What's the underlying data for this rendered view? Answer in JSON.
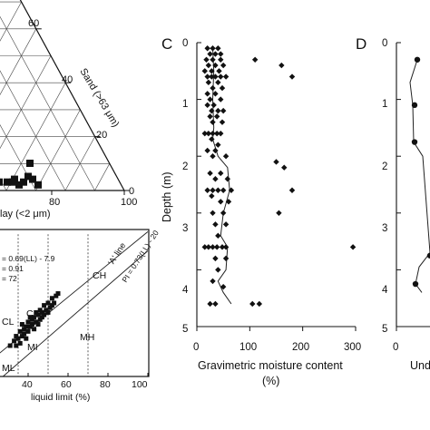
{
  "chart_data": [
    {
      "id": "ternary",
      "type": "scatter",
      "axis_labels": {
        "sand": "Sand (>63 μm)",
        "clay": "lay (<2 μm)"
      },
      "sand_ticks": [
        "60",
        "40",
        "20",
        "0"
      ],
      "bottom_ticks": [
        "80",
        "100"
      ],
      "points_sand_pct": [
        3,
        3,
        4,
        2,
        3,
        5,
        4,
        2,
        3
      ]
    },
    {
      "id": "plasticity",
      "type": "scatter",
      "xlabel": "liquid limit (%)",
      "xlim": [
        25,
        100
      ],
      "ylim": [
        0,
        62
      ],
      "x_ticks": [
        "40",
        "60",
        "80",
        "100"
      ],
      "equations": [
        "= 0.69(LL) - 7.9",
        "= 0.91",
        "= 72"
      ],
      "a_line_label": "'A' line",
      "a_line_eq": "PI = 0.73(LL) - 20",
      "a_line": {
        "slope": 0.73,
        "intercept": -20
      },
      "fit_line": {
        "slope": 0.69,
        "intercept": -7.9
      },
      "zones": [
        "CH",
        "CI",
        "CL",
        "MH",
        "MI",
        "ML"
      ],
      "vlines": [
        35,
        50,
        70
      ],
      "points": [
        [
          31,
          13
        ],
        [
          33,
          15
        ],
        [
          34,
          17
        ],
        [
          35,
          16
        ],
        [
          36,
          19
        ],
        [
          37,
          17
        ],
        [
          38,
          20
        ],
        [
          38,
          18
        ],
        [
          39,
          21
        ],
        [
          40,
          19
        ],
        [
          40,
          23
        ],
        [
          41,
          21
        ],
        [
          42,
          24
        ],
        [
          42,
          22
        ],
        [
          43,
          20
        ],
        [
          43,
          25
        ],
        [
          44,
          23
        ],
        [
          45,
          26
        ],
        [
          45,
          22
        ],
        [
          46,
          24
        ],
        [
          46,
          28
        ],
        [
          47,
          27
        ],
        [
          47,
          25
        ],
        [
          48,
          30
        ],
        [
          48,
          26
        ],
        [
          49,
          28
        ],
        [
          50,
          31
        ],
        [
          50,
          27
        ],
        [
          51,
          29
        ],
        [
          52,
          33
        ],
        [
          52,
          30
        ],
        [
          53,
          31
        ],
        [
          54,
          34
        ],
        [
          55,
          35
        ],
        [
          44,
          27
        ],
        [
          41,
          25
        ],
        [
          39,
          16
        ],
        [
          36,
          14
        ],
        [
          34,
          13
        ],
        [
          37,
          22
        ]
      ]
    },
    {
      "id": "moisture",
      "panel_label": "C",
      "type": "scatter",
      "xlabel": "Gravimetric moisture content",
      "xunit": "(%)",
      "ylabel": "Depth (m)",
      "xlim": [
        0,
        300
      ],
      "ylim": [
        0,
        5
      ],
      "x_ticks": [
        "0",
        "100",
        "200",
        "300"
      ],
      "y_ticks": [
        "0",
        "1",
        "2",
        "3",
        "4",
        "5"
      ],
      "points": [
        [
          20,
          0.1
        ],
        [
          30,
          0.1
        ],
        [
          40,
          0.1
        ],
        [
          25,
          0.2
        ],
        [
          35,
          0.2
        ],
        [
          45,
          0.2
        ],
        [
          18,
          0.3
        ],
        [
          30,
          0.3
        ],
        [
          45,
          0.3
        ],
        [
          110,
          0.3
        ],
        [
          22,
          0.4
        ],
        [
          35,
          0.4
        ],
        [
          50,
          0.4
        ],
        [
          160,
          0.4
        ],
        [
          15,
          0.5
        ],
        [
          28,
          0.5
        ],
        [
          42,
          0.5
        ],
        [
          20,
          0.6
        ],
        [
          28,
          0.6
        ],
        [
          35,
          0.6
        ],
        [
          45,
          0.6
        ],
        [
          55,
          0.6
        ],
        [
          180,
          0.6
        ],
        [
          22,
          0.7
        ],
        [
          40,
          0.7
        ],
        [
          30,
          0.8
        ],
        [
          48,
          0.8
        ],
        [
          20,
          0.9
        ],
        [
          35,
          0.9
        ],
        [
          25,
          1.0
        ],
        [
          45,
          1.0
        ],
        [
          20,
          1.1
        ],
        [
          32,
          1.1
        ],
        [
          28,
          1.2
        ],
        [
          40,
          1.2
        ],
        [
          50,
          1.2
        ],
        [
          25,
          1.3
        ],
        [
          38,
          1.3
        ],
        [
          30,
          1.4
        ],
        [
          48,
          1.4
        ],
        [
          15,
          1.6
        ],
        [
          22,
          1.6
        ],
        [
          30,
          1.6
        ],
        [
          38,
          1.6
        ],
        [
          45,
          1.6
        ],
        [
          28,
          1.7
        ],
        [
          40,
          1.8
        ],
        [
          20,
          1.9
        ],
        [
          35,
          1.9
        ],
        [
          30,
          2.0
        ],
        [
          55,
          2.0
        ],
        [
          150,
          2.1
        ],
        [
          165,
          2.2
        ],
        [
          25,
          2.3
        ],
        [
          45,
          2.3
        ],
        [
          35,
          2.4
        ],
        [
          58,
          2.4
        ],
        [
          20,
          2.6
        ],
        [
          30,
          2.6
        ],
        [
          40,
          2.6
        ],
        [
          50,
          2.6
        ],
        [
          65,
          2.6
        ],
        [
          180,
          2.6
        ],
        [
          28,
          2.7
        ],
        [
          45,
          2.8
        ],
        [
          60,
          2.8
        ],
        [
          30,
          3.0
        ],
        [
          50,
          3.0
        ],
        [
          155,
          3.0
        ],
        [
          35,
          3.2
        ],
        [
          55,
          3.2
        ],
        [
          40,
          3.4
        ],
        [
          15,
          3.6
        ],
        [
          22,
          3.6
        ],
        [
          30,
          3.6
        ],
        [
          38,
          3.6
        ],
        [
          48,
          3.6
        ],
        [
          55,
          3.6
        ],
        [
          295,
          3.6
        ],
        [
          35,
          3.8
        ],
        [
          55,
          3.8
        ],
        [
          40,
          4.0
        ],
        [
          30,
          4.2
        ],
        [
          50,
          4.3
        ],
        [
          25,
          4.6
        ],
        [
          35,
          4.6
        ],
        [
          105,
          4.6
        ],
        [
          118,
          4.6
        ]
      ],
      "line": [
        [
          30,
          0.1
        ],
        [
          32,
          0.5
        ],
        [
          30,
          1.0
        ],
        [
          32,
          1.5
        ],
        [
          30,
          1.7
        ],
        [
          40,
          2.0
        ],
        [
          58,
          2.2
        ],
        [
          62,
          2.6
        ],
        [
          50,
          3.0
        ],
        [
          45,
          3.4
        ],
        [
          58,
          3.6
        ],
        [
          55,
          4.0
        ],
        [
          40,
          4.2
        ],
        [
          50,
          4.4
        ],
        [
          65,
          4.6
        ]
      ]
    },
    {
      "id": "panel-d",
      "panel_label": "D",
      "type": "line",
      "xlabel": "Und",
      "ylim": [
        0,
        5
      ],
      "y_ticks": [
        "0",
        "1",
        "2",
        "3",
        "4",
        "5"
      ],
      "x_ticks": [
        "0"
      ],
      "points_depth": [
        0.3,
        1.1,
        1.75,
        3.75,
        4.25
      ]
    }
  ]
}
